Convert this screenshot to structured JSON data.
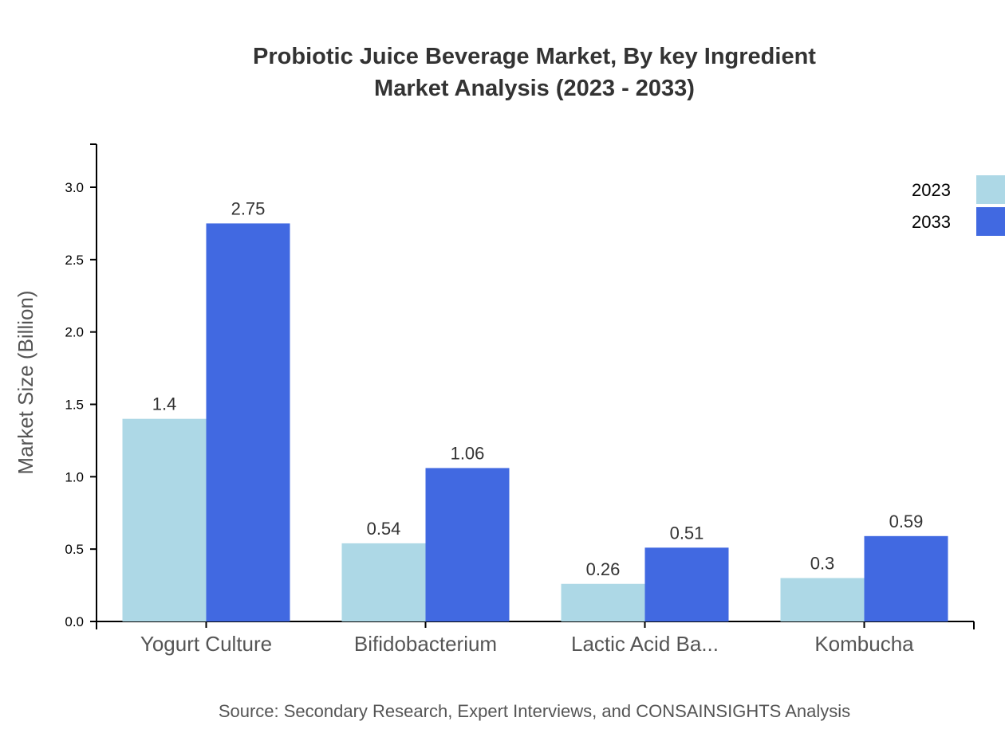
{
  "chart_data": {
    "type": "bar",
    "title": "Probiotic Juice Beverage Market, By key Ingredient",
    "subtitle": "Market Analysis (2023 - 2033)",
    "xlabel": "",
    "ylabel": "Market Size (Billion)",
    "ylim": [
      0,
      3.3
    ],
    "yticks": [
      "0.0",
      "0.5",
      "1.0",
      "1.5",
      "2.0",
      "2.5",
      "3.0"
    ],
    "categories": [
      "Yogurt Culture",
      "Bifidobacterium",
      "Lactic Acid Ba...",
      "Kombucha"
    ],
    "series": [
      {
        "name": "2023",
        "color": "#add8e6",
        "values": [
          1.4,
          0.54,
          0.26,
          0.3
        ]
      },
      {
        "name": "2033",
        "color": "#4169e1",
        "values": [
          2.75,
          1.06,
          0.51,
          0.59
        ]
      }
    ],
    "grid": false,
    "legend": "top-right",
    "source": "Source: Secondary Research, Expert Interviews, and CONSAINSIGHTS Analysis"
  }
}
